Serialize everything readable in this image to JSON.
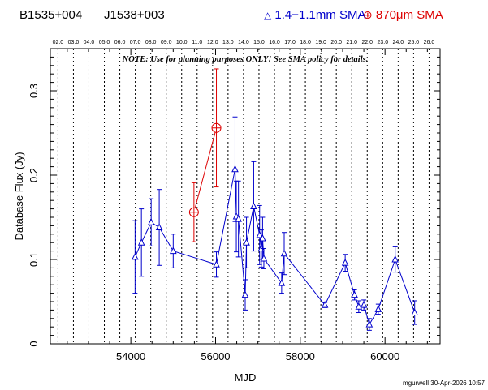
{
  "header": {
    "source_names": [
      "B1535+004",
      "J1538+003"
    ],
    "legend": [
      {
        "symbol": "triangle",
        "label": "1.4−1.1mm SMA",
        "color": "#0000cc"
      },
      {
        "symbol": "circle-plus",
        "label": "870μm SMA",
        "color": "#dd0000"
      }
    ]
  },
  "footer": {
    "stamp": "mgurwell 30-Apr-2026 10:57"
  },
  "chart_data": {
    "type": "scatter",
    "xlabel": "MJD",
    "ylabel": "Database Flux (Jy)",
    "xlim": [
      52100,
      61300
    ],
    "ylim": [
      0,
      0.35
    ],
    "x_ticks": [
      54000,
      56000,
      58000,
      60000
    ],
    "y_ticks": [
      0,
      0.1,
      0.2,
      0.3
    ],
    "note": "NOTE: Use for planning purposes ONLY!  See SMA policy for details.",
    "top_axis_ticks": [
      {
        "label": "02.0",
        "x": 52280
      },
      {
        "label": "03.0",
        "x": 52645
      },
      {
        "label": "04.0",
        "x": 53010
      },
      {
        "label": "05.0",
        "x": 53375
      },
      {
        "label": "06.0",
        "x": 53740
      },
      {
        "label": "07.0",
        "x": 54105
      },
      {
        "label": "08.0",
        "x": 54470
      },
      {
        "label": "09.0",
        "x": 54835
      },
      {
        "label": "10.0",
        "x": 55200
      },
      {
        "label": "11.0",
        "x": 55565
      },
      {
        "label": "12.0",
        "x": 55930
      },
      {
        "label": "13.0",
        "x": 56295
      },
      {
        "label": "14.0",
        "x": 56660
      },
      {
        "label": "15.0",
        "x": 57025
      },
      {
        "label": "16.0",
        "x": 57390
      },
      {
        "label": "17.0",
        "x": 57755
      },
      {
        "label": "18.0",
        "x": 58120
      },
      {
        "label": "19.0",
        "x": 58485
      },
      {
        "label": "20.0",
        "x": 58850
      },
      {
        "label": "21.0",
        "x": 59215
      },
      {
        "label": "22.0",
        "x": 59580
      },
      {
        "label": "23.0",
        "x": 59945
      },
      {
        "label": "24.0",
        "x": 60310
      },
      {
        "label": "25.0",
        "x": 60675
      },
      {
        "label": "26.0",
        "x": 61040
      }
    ],
    "grid": "vertical dotted lines at top axis ticks",
    "series": [
      {
        "name": "1.4−1.1mm SMA",
        "color": "#0000cc",
        "marker": "triangle",
        "points": [
          {
            "x": 54100,
            "y": 0.103,
            "err": 0.043
          },
          {
            "x": 54250,
            "y": 0.12,
            "err": 0.04
          },
          {
            "x": 54480,
            "y": 0.144,
            "err": 0.028
          },
          {
            "x": 54670,
            "y": 0.138,
            "err": 0.045
          },
          {
            "x": 55000,
            "y": 0.11,
            "err": 0.02
          },
          {
            "x": 56020,
            "y": 0.094,
            "err": 0.015
          },
          {
            "x": 56460,
            "y": 0.207,
            "err": 0.062
          },
          {
            "x": 56490,
            "y": 0.151,
            "err": 0.042
          },
          {
            "x": 56540,
            "y": 0.148,
            "err": 0.045
          },
          {
            "x": 56700,
            "y": 0.058,
            "err": 0.018
          },
          {
            "x": 56730,
            "y": 0.12,
            "err": 0.03
          },
          {
            "x": 56900,
            "y": 0.163,
            "err": 0.053
          },
          {
            "x": 57040,
            "y": 0.129,
            "err": 0.035
          },
          {
            "x": 57080,
            "y": 0.113,
            "err": 0.022
          },
          {
            "x": 57110,
            "y": 0.125,
            "err": 0.025
          },
          {
            "x": 57140,
            "y": 0.101,
            "err": 0.012
          },
          {
            "x": 57560,
            "y": 0.072,
            "err": 0.012
          },
          {
            "x": 57620,
            "y": 0.107,
            "err": 0.025
          },
          {
            "x": 58580,
            "y": 0.046,
            "err": 0.003
          },
          {
            "x": 59060,
            "y": 0.096,
            "err": 0.01
          },
          {
            "x": 59280,
            "y": 0.058,
            "err": 0.006
          },
          {
            "x": 59380,
            "y": 0.044,
            "err": 0.007
          },
          {
            "x": 59500,
            "y": 0.046,
            "err": 0.006
          },
          {
            "x": 59630,
            "y": 0.023,
            "err": 0.007
          },
          {
            "x": 59840,
            "y": 0.041,
            "err": 0.006
          },
          {
            "x": 60240,
            "y": 0.1,
            "err": 0.015
          },
          {
            "x": 60700,
            "y": 0.037,
            "err": 0.014
          }
        ]
      },
      {
        "name": "870μm SMA",
        "color": "#dd0000",
        "marker": "circle-plus",
        "points": [
          {
            "x": 55490,
            "y": 0.156,
            "err": 0.035
          },
          {
            "x": 56020,
            "y": 0.256,
            "err": 0.07
          }
        ]
      }
    ]
  }
}
